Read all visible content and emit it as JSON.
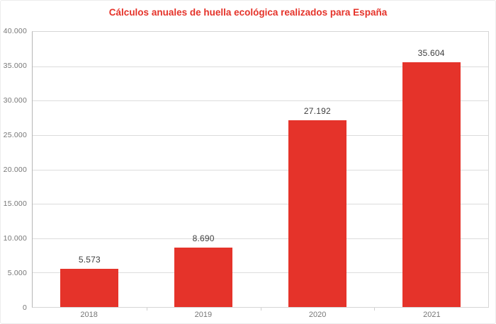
{
  "chart_data": {
    "type": "bar",
    "title": "Cálculos anuales de huella ecológica realizados para España",
    "categories": [
      "2018",
      "2019",
      "2020",
      "2021"
    ],
    "values": [
      5573,
      8690,
      27192,
      35604
    ],
    "value_labels": [
      "5.573",
      "8.690",
      "27.192",
      "35.604"
    ],
    "yticks": [
      "40.000",
      "35.000",
      "30.000",
      "25.000",
      "20.000",
      "15.000",
      "10.000",
      "5.000",
      "0"
    ],
    "ylim": [
      0,
      40000
    ],
    "xlabel": "",
    "ylabel": "",
    "grid": "horizontal",
    "legend": "none",
    "colors": {
      "bar": "#e5332a",
      "title": "#e5332a",
      "gridline": "#dcdcdc",
      "tick_text": "#767676",
      "value_text": "#3d3d3d"
    }
  }
}
